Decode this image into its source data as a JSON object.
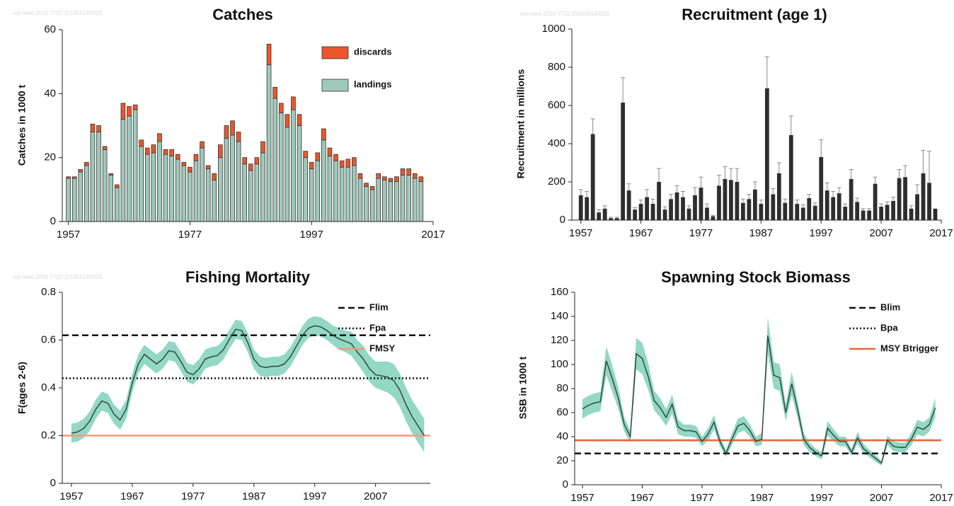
{
  "chart_data": [
    {
      "type": "bar",
      "title": "Catches",
      "y_label": "Catches in 1000 t",
      "watermark": "sol-nsea 2016 7722 201605140329",
      "x": [
        1957,
        1958,
        1959,
        1960,
        1961,
        1962,
        1963,
        1964,
        1965,
        1966,
        1967,
        1968,
        1969,
        1970,
        1971,
        1972,
        1973,
        1974,
        1975,
        1976,
        1977,
        1978,
        1979,
        1980,
        1981,
        1982,
        1983,
        1984,
        1985,
        1986,
        1987,
        1988,
        1989,
        1990,
        1991,
        1992,
        1993,
        1994,
        1995,
        1996,
        1997,
        1998,
        1999,
        2000,
        2001,
        2002,
        2003,
        2004,
        2005,
        2006,
        2007,
        2008,
        2009,
        2010,
        2011,
        2012,
        2013,
        2014,
        2015
      ],
      "series": [
        {
          "name": "landings",
          "color": "#9fc9bb",
          "values": [
            13.5,
            13.5,
            15.5,
            17.5,
            28,
            28,
            22.5,
            14.5,
            10.5,
            32,
            33,
            35,
            23.5,
            21,
            21.5,
            25,
            21,
            20.5,
            19.5,
            17.5,
            15.5,
            19,
            23,
            16.5,
            13,
            20,
            26,
            27,
            25,
            18,
            16,
            18,
            21.5,
            49,
            38.5,
            34,
            29.5,
            35,
            30,
            20,
            16.5,
            19,
            25.5,
            20.5,
            19,
            17,
            17,
            17.5,
            13.5,
            11,
            10,
            13.5,
            13,
            12.5,
            12.5,
            14.5,
            14.5,
            13.5,
            12.5
          ]
        },
        {
          "name": "discards",
          "color": "#e9572b",
          "values": [
            0.5,
            0.5,
            0.8,
            1,
            2.5,
            2,
            1,
            0.5,
            1,
            5,
            3,
            1.5,
            2,
            2,
            2.5,
            2.5,
            1.5,
            2,
            1.5,
            1,
            1.5,
            2,
            2,
            1,
            2,
            4,
            4,
            4.5,
            3,
            2,
            2,
            2,
            3.5,
            6.5,
            3.5,
            3,
            4,
            4,
            3.5,
            2,
            2,
            2.5,
            3.5,
            2.5,
            2,
            2,
            2.5,
            2.5,
            1.5,
            1,
            1,
            1.5,
            1,
            1,
            1.5,
            2,
            2,
            1.5,
            1.5
          ]
        }
      ],
      "xlim": [
        1956,
        2017
      ],
      "xticks": [
        1957,
        1977,
        1997,
        2017
      ],
      "ylim": [
        0,
        60
      ],
      "yticks": [
        0,
        20,
        40,
        60
      ],
      "grid": false,
      "legend": "upper right"
    },
    {
      "type": "bar",
      "title": "Recruitment (age 1)",
      "y_label": "Recruitment in millions",
      "watermark": "sol-nsea 2016 7722 201605140329",
      "color": "#2e2e2e",
      "x": [
        1957,
        1958,
        1959,
        1960,
        1961,
        1962,
        1963,
        1964,
        1965,
        1966,
        1967,
        1968,
        1969,
        1970,
        1971,
        1972,
        1973,
        1974,
        1975,
        1976,
        1977,
        1978,
        1979,
        1980,
        1981,
        1982,
        1983,
        1984,
        1985,
        1986,
        1987,
        1988,
        1989,
        1990,
        1991,
        1992,
        1993,
        1994,
        1995,
        1996,
        1997,
        1998,
        1999,
        2000,
        2001,
        2002,
        2003,
        2004,
        2005,
        2006,
        2007,
        2008,
        2009,
        2010,
        2011,
        2012,
        2013,
        2014,
        2015,
        2016
      ],
      "values": [
        130,
        120,
        450,
        40,
        60,
        10,
        10,
        615,
        155,
        55,
        85,
        120,
        85,
        200,
        55,
        110,
        145,
        120,
        60,
        130,
        170,
        65,
        20,
        180,
        215,
        210,
        200,
        90,
        110,
        160,
        85,
        690,
        135,
        245,
        90,
        445,
        85,
        65,
        115,
        75,
        330,
        155,
        120,
        140,
        70,
        215,
        95,
        50,
        50,
        190,
        70,
        80,
        100,
        220,
        225,
        60,
        135,
        245,
        195,
        60
      ],
      "errors": [
        30,
        30,
        80,
        15,
        15,
        5,
        5,
        130,
        35,
        10,
        20,
        40,
        25,
        70,
        15,
        25,
        35,
        30,
        15,
        40,
        55,
        20,
        5,
        55,
        65,
        60,
        70,
        20,
        25,
        40,
        20,
        165,
        30,
        55,
        20,
        100,
        20,
        15,
        20,
        15,
        90,
        40,
        30,
        30,
        15,
        50,
        20,
        10,
        10,
        35,
        15,
        15,
        20,
        45,
        60,
        15,
        50,
        120,
        165,
        null
      ],
      "xlim": [
        1955.5,
        2017
      ],
      "xticks": [
        1957,
        1967,
        1977,
        1987,
        1997,
        2007,
        2017
      ],
      "ylim": [
        0,
        1000
      ],
      "yticks": [
        0,
        200,
        400,
        600,
        800,
        1000
      ],
      "grid": false
    },
    {
      "type": "line",
      "title": "Fishing Mortality",
      "y_label": "F(ages 2-6)",
      "watermark": "sol-nsea 2016 7722 201605140329",
      "color": "#2f4a40",
      "band_color": "#93d8c4",
      "x": [
        1957,
        1958,
        1959,
        1960,
        1961,
        1962,
        1963,
        1964,
        1965,
        1966,
        1967,
        1968,
        1969,
        1970,
        1971,
        1972,
        1973,
        1974,
        1975,
        1976,
        1977,
        1978,
        1979,
        1980,
        1981,
        1982,
        1983,
        1984,
        1985,
        1986,
        1987,
        1988,
        1989,
        1990,
        1991,
        1992,
        1993,
        1994,
        1995,
        1996,
        1997,
        1998,
        1999,
        2000,
        2001,
        2002,
        2003,
        2004,
        2005,
        2006,
        2007,
        2008,
        2009,
        2010,
        2011,
        2012,
        2013,
        2014,
        2015
      ],
      "values": [
        0.21,
        0.215,
        0.23,
        0.26,
        0.31,
        0.345,
        0.335,
        0.29,
        0.265,
        0.31,
        0.42,
        0.5,
        0.54,
        0.52,
        0.5,
        0.52,
        0.555,
        0.55,
        0.51,
        0.465,
        0.455,
        0.48,
        0.52,
        0.53,
        0.535,
        0.56,
        0.605,
        0.645,
        0.64,
        0.59,
        0.52,
        0.49,
        0.485,
        0.49,
        0.49,
        0.5,
        0.53,
        0.575,
        0.62,
        0.65,
        0.66,
        0.655,
        0.64,
        0.62,
        0.605,
        0.595,
        0.585,
        0.55,
        0.52,
        0.48,
        0.455,
        0.45,
        0.445,
        0.43,
        0.39,
        0.33,
        0.28,
        0.24,
        0.2
      ],
      "band": {
        "lower": [
          0.17,
          0.175,
          0.19,
          0.22,
          0.27,
          0.305,
          0.295,
          0.25,
          0.225,
          0.27,
          0.38,
          0.46,
          0.5,
          0.48,
          0.46,
          0.48,
          0.515,
          0.51,
          0.47,
          0.425,
          0.415,
          0.44,
          0.48,
          0.49,
          0.495,
          0.52,
          0.565,
          0.605,
          0.6,
          0.55,
          0.48,
          0.45,
          0.445,
          0.45,
          0.45,
          0.46,
          0.49,
          0.535,
          0.58,
          0.61,
          0.62,
          0.615,
          0.6,
          0.58,
          0.56,
          0.55,
          0.535,
          0.5,
          0.465,
          0.425,
          0.4,
          0.39,
          0.38,
          0.36,
          0.32,
          0.26,
          0.21,
          0.17,
          0.13
        ],
        "upper": [
          0.25,
          0.255,
          0.27,
          0.3,
          0.35,
          0.385,
          0.375,
          0.33,
          0.305,
          0.35,
          0.46,
          0.54,
          0.58,
          0.56,
          0.54,
          0.56,
          0.595,
          0.59,
          0.55,
          0.505,
          0.495,
          0.52,
          0.56,
          0.57,
          0.575,
          0.6,
          0.645,
          0.685,
          0.68,
          0.63,
          0.56,
          0.53,
          0.525,
          0.53,
          0.53,
          0.54,
          0.57,
          0.615,
          0.66,
          0.69,
          0.7,
          0.695,
          0.68,
          0.66,
          0.65,
          0.64,
          0.635,
          0.6,
          0.575,
          0.535,
          0.51,
          0.51,
          0.51,
          0.5,
          0.46,
          0.4,
          0.35,
          0.31,
          0.27
        ]
      },
      "reference_lines": [
        {
          "name": "Flim",
          "value": 0.62,
          "style": "dashed",
          "color": "#111111"
        },
        {
          "name": "Fpa",
          "value": 0.44,
          "style": "dotted",
          "color": "#111111"
        },
        {
          "name": "FMSY",
          "value": 0.2,
          "style": "solid",
          "color": "#f39a7c"
        }
      ],
      "xlim": [
        1955.5,
        2016
      ],
      "xticks": [
        1957,
        1967,
        1977,
        1987,
        1997,
        2007
      ],
      "ylim": [
        0,
        0.8
      ],
      "yticks": [
        0,
        0.2,
        0.4,
        0.6,
        0.8
      ],
      "grid": false,
      "legend": "upper right"
    },
    {
      "type": "line",
      "title": "Spawning Stock Biomass",
      "y_label": "SSB in 1000 t",
      "color": "#2f4a40",
      "band_color": "#93d8c4",
      "x": [
        1957,
        1958,
        1959,
        1960,
        1961,
        1962,
        1963,
        1964,
        1965,
        1966,
        1967,
        1968,
        1969,
        1970,
        1971,
        1972,
        1973,
        1974,
        1975,
        1976,
        1977,
        1978,
        1979,
        1980,
        1981,
        1982,
        1983,
        1984,
        1985,
        1986,
        1987,
        1988,
        1989,
        1990,
        1991,
        1992,
        1993,
        1994,
        1995,
        1996,
        1997,
        1998,
        1999,
        2000,
        2001,
        2002,
        2003,
        2004,
        2005,
        2006,
        2007,
        2008,
        2009,
        2010,
        2011,
        2012,
        2013,
        2014,
        2015,
        2016
      ],
      "values": [
        63,
        66,
        68,
        69,
        103,
        88,
        72,
        50,
        40,
        109,
        105,
        90,
        70,
        64,
        56,
        67,
        48,
        45,
        45,
        44,
        36,
        42,
        52,
        36,
        26,
        38,
        49,
        51,
        45,
        36,
        38,
        124,
        91,
        89,
        60,
        84,
        62,
        38,
        31,
        27,
        24,
        47,
        41,
        36,
        36,
        27,
        39,
        30,
        26,
        22,
        18,
        37,
        32,
        31,
        31,
        38,
        48,
        46,
        50,
        64
      ],
      "band": {
        "lower": [
          55,
          58,
          60,
          61,
          91,
          77,
          63,
          44,
          35,
          96,
          92,
          79,
          62,
          56,
          49,
          59,
          42,
          40,
          40,
          39,
          32,
          37,
          46,
          32,
          23,
          33,
          43,
          45,
          40,
          32,
          33,
          109,
          80,
          78,
          53,
          74,
          55,
          33,
          27,
          24,
          21,
          41,
          36,
          32,
          32,
          24,
          34,
          26,
          23,
          19,
          16,
          33,
          28,
          27,
          27,
          33,
          42,
          40,
          44,
          56
        ],
        "upper": [
          71,
          74,
          76,
          77,
          115,
          99,
          81,
          56,
          45,
          122,
          118,
          101,
          78,
          72,
          63,
          75,
          54,
          50,
          50,
          49,
          40,
          47,
          58,
          40,
          29,
          43,
          55,
          57,
          50,
          40,
          43,
          139,
          102,
          100,
          67,
          94,
          69,
          43,
          35,
          30,
          27,
          53,
          46,
          40,
          40,
          30,
          44,
          34,
          29,
          25,
          20,
          41,
          36,
          35,
          35,
          43,
          54,
          52,
          56,
          72
        ]
      },
      "reference_lines": [
        {
          "name": "Blim",
          "value": 26,
          "style": "dashed",
          "color": "#111111"
        },
        {
          "name": "Bpa",
          "value": 37,
          "style": "dotted",
          "color": "#111111"
        },
        {
          "name": "MSY Btrigger",
          "value": 37,
          "style": "solid",
          "color": "#e8673a"
        }
      ],
      "xlim": [
        1955.7,
        2017
      ],
      "xticks": [
        1957,
        1967,
        1977,
        1987,
        1997,
        2007,
        2017
      ],
      "ylim": [
        0,
        160
      ],
      "yticks": [
        0,
        20,
        40,
        60,
        80,
        100,
        120,
        140,
        160
      ],
      "grid": false,
      "legend": "upper right"
    }
  ]
}
